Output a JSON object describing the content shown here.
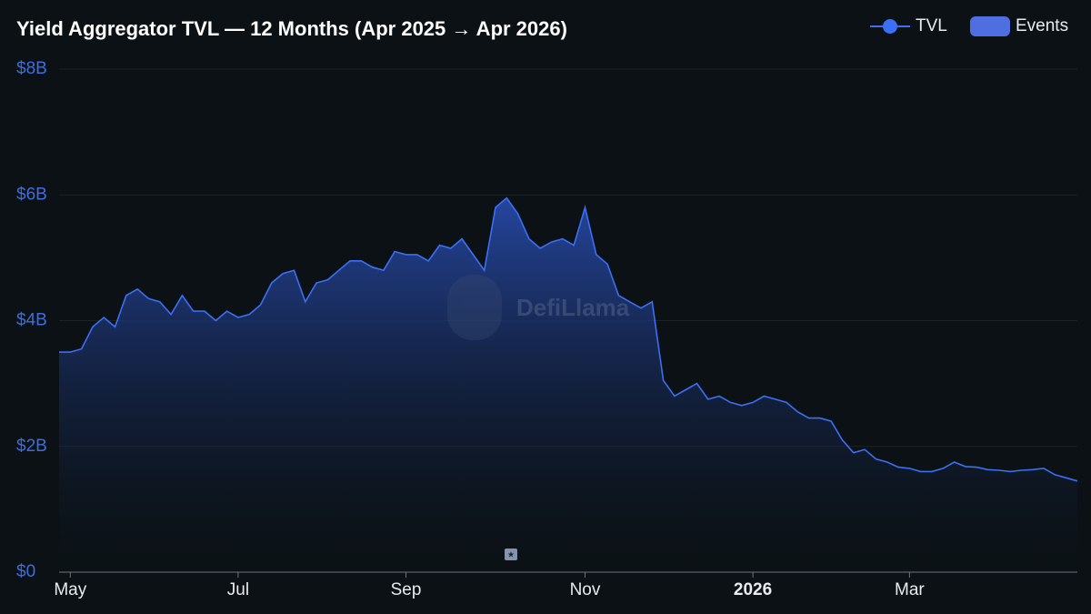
{
  "chart_data": {
    "type": "area",
    "title": "Yield Aggregator TVL — 12 Months (Apr 2025 → Apr 2026)",
    "watermark": "DefiLlama",
    "events_legend": "Events",
    "events_color": "#4f6fe0",
    "categories": [
      null,
      "May",
      null,
      null,
      null,
      null,
      null,
      null,
      null,
      null,
      null,
      null,
      null,
      null,
      null,
      null,
      "Jul",
      null,
      null,
      null,
      null,
      null,
      null,
      null,
      null,
      null,
      null,
      null,
      null,
      null,
      null,
      "Sep",
      null,
      null,
      null,
      null,
      null,
      null,
      null,
      null,
      null,
      null,
      null,
      null,
      null,
      null,
      null,
      "Nov",
      null,
      null,
      null,
      null,
      null,
      null,
      null,
      null,
      null,
      null,
      null,
      null,
      null,
      null,
      "2026",
      null,
      null,
      null,
      null,
      null,
      null,
      null,
      null,
      null,
      null,
      null,
      null,
      null,
      "Mar",
      null,
      null,
      null,
      null,
      null,
      null,
      null,
      null,
      null,
      null,
      null,
      null,
      null,
      null,
      null
    ],
    "series": [
      {
        "name": "TVL",
        "color": "#3b6ff5",
        "values": [
          3.5,
          3.5,
          3.55,
          3.9,
          4.05,
          3.9,
          4.4,
          4.5,
          4.35,
          4.3,
          4.1,
          4.4,
          4.15,
          4.15,
          4.0,
          4.15,
          4.05,
          4.1,
          4.25,
          4.6,
          4.75,
          4.8,
          4.3,
          4.6,
          4.65,
          4.8,
          4.95,
          4.95,
          4.85,
          4.8,
          5.1,
          5.05,
          5.05,
          4.95,
          5.2,
          5.15,
          5.3,
          5.05,
          4.8,
          5.8,
          5.95,
          5.7,
          5.3,
          5.15,
          5.25,
          5.3,
          5.2,
          5.8,
          5.05,
          4.9,
          4.4,
          4.3,
          4.2,
          4.3,
          3.05,
          2.8,
          2.9,
          3.0,
          2.75,
          2.8,
          2.7,
          2.65,
          2.7,
          2.8,
          2.75,
          2.7,
          2.55,
          2.45,
          2.45,
          2.4,
          2.1,
          1.9,
          1.95,
          1.8,
          1.75,
          1.67,
          1.65,
          1.6,
          1.6,
          1.65,
          1.75,
          1.68,
          1.67,
          1.63,
          1.62,
          1.6,
          1.62,
          1.63,
          1.65,
          1.55,
          1.5,
          1.45
        ]
      }
    ],
    "ylim": [
      0,
      8
    ],
    "yticks": [
      {
        "value": 0,
        "label": "$0"
      },
      {
        "value": 2,
        "label": "$2B"
      },
      {
        "value": 4,
        "label": "$4B"
      },
      {
        "value": 6,
        "label": "$6B"
      },
      {
        "value": 8,
        "label": "$8B"
      }
    ],
    "grid": true
  }
}
